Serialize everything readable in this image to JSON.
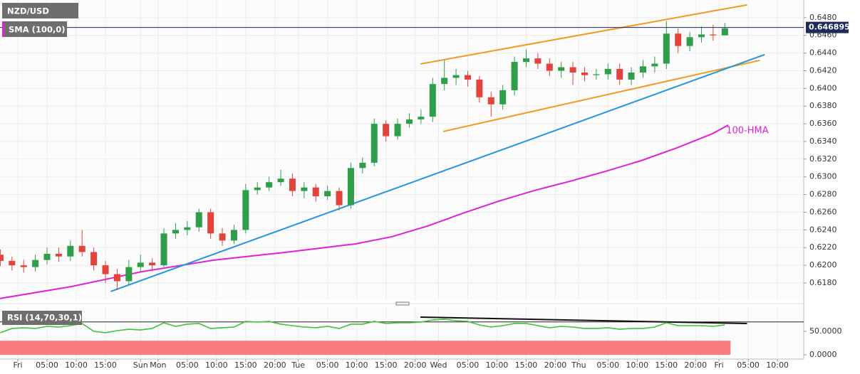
{
  "chart_data": [
    {
      "type": "candlestick",
      "title": "NZD/USD",
      "indicator": "SMA (100,0)",
      "x": [
        -3,
        -1,
        1,
        3,
        5,
        7,
        9,
        11,
        13,
        15,
        17,
        19,
        21,
        23,
        25,
        27,
        29,
        31,
        33,
        35,
        37,
        39,
        41,
        43,
        45,
        47,
        49,
        51,
        53,
        55,
        57,
        59,
        61,
        63,
        65,
        67,
        69,
        71,
        73,
        75,
        77,
        79,
        81,
        83,
        85,
        87,
        89,
        91,
        93,
        95,
        97,
        99,
        101,
        103,
        105,
        107,
        109,
        111,
        113,
        115,
        117,
        119,
        121
      ],
      "open": [
        0.6212,
        0.6205,
        0.62,
        0.6198,
        0.6206,
        0.6213,
        0.621,
        0.6222,
        0.6215,
        0.62,
        0.619,
        0.6182,
        0.6198,
        0.6203,
        0.62,
        0.6236,
        0.624,
        0.6243,
        0.626,
        0.6236,
        0.6228,
        0.624,
        0.6285,
        0.6288,
        0.6294,
        0.6298,
        0.6284,
        0.6288,
        0.6278,
        0.6284,
        0.6268,
        0.631,
        0.6316,
        0.636,
        0.6346,
        0.636,
        0.6365,
        0.6368,
        0.6405,
        0.6412,
        0.6415,
        0.641,
        0.639,
        0.6382,
        0.6398,
        0.643,
        0.6434,
        0.6428,
        0.642,
        0.6424,
        0.6418,
        0.6415,
        0.6416,
        0.6422,
        0.641,
        0.6418,
        0.6425,
        0.6428,
        0.6462,
        0.6448,
        0.6458,
        0.6461,
        0.646
      ],
      "high": [
        0.6218,
        0.621,
        0.6206,
        0.6212,
        0.622,
        0.622,
        0.6228,
        0.624,
        0.622,
        0.6205,
        0.6196,
        0.6206,
        0.6212,
        0.6208,
        0.6242,
        0.6248,
        0.625,
        0.6264,
        0.6264,
        0.6242,
        0.6246,
        0.6292,
        0.6294,
        0.63,
        0.6308,
        0.6304,
        0.6294,
        0.6292,
        0.629,
        0.6288,
        0.6316,
        0.6322,
        0.6366,
        0.6364,
        0.6366,
        0.6372,
        0.6376,
        0.6412,
        0.6432,
        0.6422,
        0.642,
        0.6414,
        0.6396,
        0.6404,
        0.6436,
        0.6444,
        0.644,
        0.6434,
        0.643,
        0.643,
        0.6424,
        0.6422,
        0.6428,
        0.6428,
        0.6424,
        0.6432,
        0.6436,
        0.6476,
        0.6468,
        0.6464,
        0.647,
        0.6472,
        0.6474
      ],
      "low": [
        0.6199,
        0.6194,
        0.6192,
        0.6193,
        0.6201,
        0.6204,
        0.6205,
        0.621,
        0.6194,
        0.618,
        0.6172,
        0.6178,
        0.6192,
        0.6193,
        0.6198,
        0.623,
        0.6234,
        0.6238,
        0.623,
        0.6222,
        0.6224,
        0.6236,
        0.628,
        0.6284,
        0.629,
        0.6278,
        0.6276,
        0.6272,
        0.6274,
        0.6262,
        0.6264,
        0.6304,
        0.6312,
        0.634,
        0.6342,
        0.6356,
        0.636,
        0.6362,
        0.6398,
        0.6404,
        0.6402,
        0.6384,
        0.6368,
        0.6376,
        0.6392,
        0.6424,
        0.6422,
        0.6414,
        0.6412,
        0.6404,
        0.6408,
        0.641,
        0.641,
        0.6404,
        0.6404,
        0.6412,
        0.6418,
        0.6422,
        0.644,
        0.6442,
        0.6452,
        0.6454,
        0.646
      ],
      "close": [
        0.6205,
        0.62,
        0.6198,
        0.6206,
        0.6213,
        0.621,
        0.6222,
        0.6215,
        0.62,
        0.619,
        0.6182,
        0.6198,
        0.6203,
        0.62,
        0.6236,
        0.624,
        0.6243,
        0.626,
        0.6236,
        0.6228,
        0.624,
        0.6285,
        0.6288,
        0.6294,
        0.6298,
        0.6284,
        0.6288,
        0.6278,
        0.6284,
        0.6268,
        0.631,
        0.6316,
        0.636,
        0.6346,
        0.636,
        0.6365,
        0.6368,
        0.6405,
        0.6412,
        0.6415,
        0.641,
        0.639,
        0.6382,
        0.6398,
        0.643,
        0.6434,
        0.6428,
        0.642,
        0.6424,
        0.6418,
        0.6415,
        0.6416,
        0.6422,
        0.641,
        0.6418,
        0.6425,
        0.6428,
        0.6462,
        0.6448,
        0.6458,
        0.6461,
        0.646,
        0.6468
      ],
      "up_color": "#2e9e4a",
      "down_color": "#e0443c",
      "last_price": 0.646895,
      "last_price_color": "#1c2a5c",
      "overlays": [
        {
          "color": "#f29a1f",
          "x": [
            68.9,
            124.8
          ],
          "values": [
            0.64277,
            0.64945
          ]
        },
        {
          "color": "#f29a1f",
          "x": [
            72.8,
            127.0
          ],
          "values": [
            0.63513,
            0.64318
          ]
        },
        {
          "name": "100-HMA",
          "color": "#e020d8",
          "x": [
            -3.1,
            9.2,
            21.3,
            33.5,
            45.7,
            57.9,
            64.0,
            70.1,
            76.2,
            82.3,
            88.4,
            94.5,
            100.6,
            106.7,
            112.8,
            118.9,
            121.6
          ],
          "values": [
            0.61624,
            0.6176,
            0.61929,
            0.62058,
            0.62146,
            0.62243,
            0.62323,
            0.62444,
            0.62589,
            0.62725,
            0.62846,
            0.6295,
            0.63063,
            0.63184,
            0.63328,
            0.63489,
            0.63586
          ]
        },
        {
          "color": "#2196e0",
          "x": [
            15.9,
            127.8
          ],
          "values": [
            0.61704,
            0.64382
          ]
        }
      ],
      "xlim": [
        -3.05,
        134.5
      ],
      "ylim": [
        0.61607,
        0.65
      ],
      "xticks": [
        {
          "value": 0,
          "label": "Fri"
        },
        {
          "value": 5,
          "label": "05:00"
        },
        {
          "value": 10,
          "label": "10:00"
        },
        {
          "value": 15,
          "label": "15:00"
        },
        {
          "value": 21,
          "label": "Sun"
        },
        {
          "value": 24,
          "label": "Mon"
        },
        {
          "value": 29,
          "label": "05:00"
        },
        {
          "value": 34,
          "label": "10:00"
        },
        {
          "value": 39,
          "label": "15:00"
        },
        {
          "value": 44,
          "label": "20:00"
        },
        {
          "value": 48,
          "label": "Tue"
        },
        {
          "value": 53,
          "label": "05:00"
        },
        {
          "value": 58,
          "label": "10:00"
        },
        {
          "value": 63,
          "label": "15:00"
        },
        {
          "value": 68,
          "label": "20:00"
        },
        {
          "value": 72,
          "label": "Wed"
        },
        {
          "value": 77,
          "label": "05:00"
        },
        {
          "value": 82,
          "label": "10:00"
        },
        {
          "value": 87,
          "label": "15:00"
        },
        {
          "value": 92,
          "label": "20:00"
        },
        {
          "value": 96,
          "label": "Thu"
        },
        {
          "value": 101,
          "label": "05:00"
        },
        {
          "value": 106,
          "label": "10:00"
        },
        {
          "value": 111,
          "label": "15:00"
        },
        {
          "value": 116,
          "label": "20:00"
        },
        {
          "value": 120,
          "label": "Fri"
        },
        {
          "value": 125,
          "label": "05:00"
        },
        {
          "value": 130,
          "label": "10:00"
        }
      ],
      "yticks": [
        {
          "value": 0.618,
          "label": "0.6180"
        },
        {
          "value": 0.62,
          "label": "0.6200"
        },
        {
          "value": 0.622,
          "label": "0.6220"
        },
        {
          "value": 0.624,
          "label": "0.6240"
        },
        {
          "value": 0.626,
          "label": "0.6260"
        },
        {
          "value": 0.628,
          "label": "0.6280"
        },
        {
          "value": 0.63,
          "label": "0.6300"
        },
        {
          "value": 0.632,
          "label": "0.6320"
        },
        {
          "value": 0.634,
          "label": "0.6340"
        },
        {
          "value": 0.636,
          "label": "0.6360"
        },
        {
          "value": 0.638,
          "label": "0.6380"
        },
        {
          "value": 0.64,
          "label": "0.6400"
        },
        {
          "value": 0.642,
          "label": "0.6420"
        },
        {
          "value": 0.644,
          "label": "0.6440"
        },
        {
          "value": 0.646,
          "label": "0.6460"
        },
        {
          "value": 0.648,
          "label": "0.6480"
        }
      ],
      "grid": true
    },
    {
      "type": "line",
      "title": "RSI (14,70,30,1)",
      "color": "#3cc43c",
      "x": [
        -3,
        -1,
        1,
        3,
        5,
        7,
        9,
        11,
        13,
        15,
        17,
        19,
        21,
        23,
        25,
        27,
        29,
        31,
        33,
        35,
        37,
        39,
        41,
        43,
        45,
        47,
        49,
        51,
        53,
        55,
        57,
        59,
        61,
        63,
        65,
        67,
        69,
        71,
        73,
        75,
        77,
        79,
        81,
        83,
        85,
        87,
        89,
        91,
        93,
        95,
        97,
        99,
        101,
        103,
        105,
        107,
        109,
        111,
        113,
        115,
        117,
        119,
        121
      ],
      "values": [
        47.0,
        56.1,
        57.6,
        56.1,
        60.6,
        59.1,
        62.1,
        66.7,
        50.0,
        47.0,
        51.5,
        54.5,
        53.0,
        56.1,
        68.2,
        60.6,
        65.2,
        66.7,
        56.1,
        57.6,
        59.1,
        71.2,
        69.7,
        71.2,
        65.2,
        62.1,
        59.1,
        57.6,
        60.6,
        56.1,
        65.2,
        65.2,
        71.2,
        66.7,
        68.2,
        68.2,
        69.7,
        74.2,
        75.8,
        72.7,
        71.2,
        63.6,
        59.1,
        62.1,
        66.7,
        66.7,
        62.1,
        57.6,
        60.6,
        59.1,
        56.1,
        56.1,
        57.6,
        54.5,
        56.1,
        56.1,
        59.1,
        68.2,
        62.1,
        62.1,
        62.1,
        60.6,
        63.6
      ],
      "upper_level": 70,
      "lower_level": 30,
      "lower_zone_color": "#f97b7b",
      "overlays": [
        {
          "color": "#111111",
          "x": [
            68.9,
            124.8
          ],
          "values": [
            80.3,
            66.7
          ]
        }
      ],
      "xlim": [
        -3.05,
        134.5
      ],
      "ylim": [
        -9.1,
        101.5
      ],
      "yticks": [
        {
          "value": 50,
          "label": "50.0000"
        },
        {
          "value": 0,
          "label": "0.0000"
        }
      ]
    }
  ]
}
